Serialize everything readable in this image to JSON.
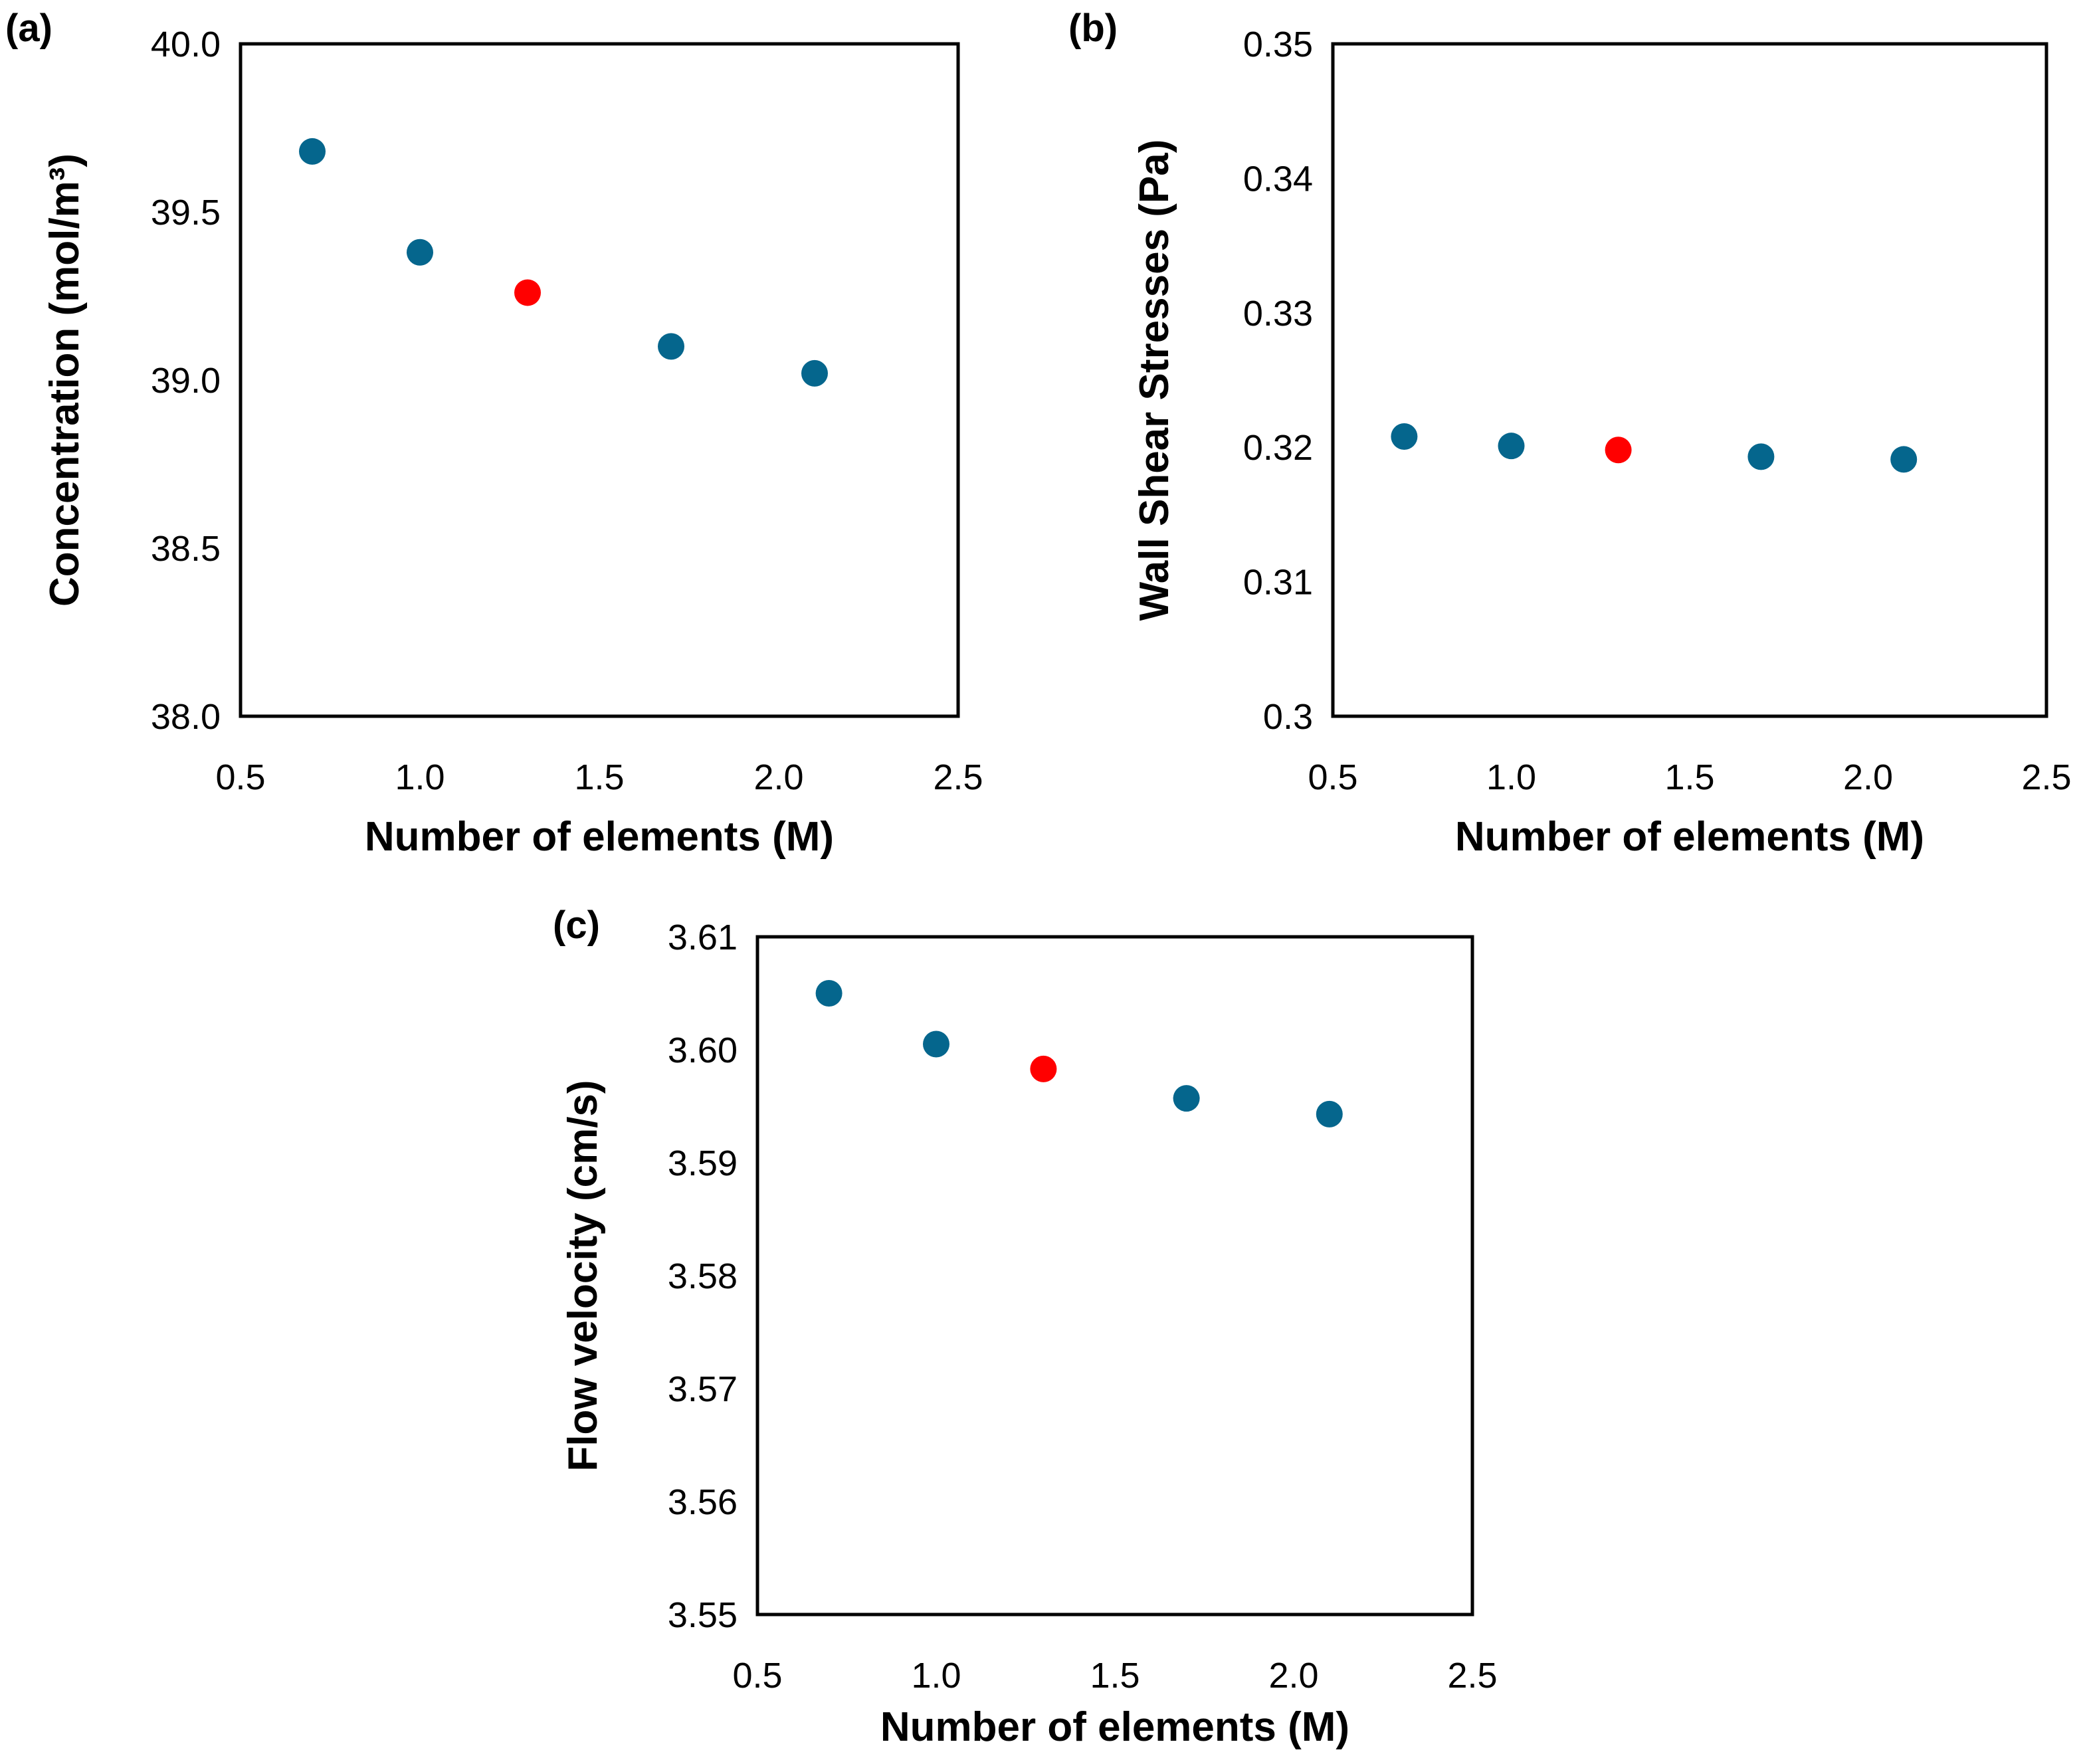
{
  "chart_data": [
    {
      "panel_label": "(a)",
      "type": "scatter",
      "xlabel": "Number of elements (M)",
      "ylabel": "Concentration (mol/m³)",
      "xlim": [
        0.5,
        2.5
      ],
      "ylim": [
        38.0,
        40.0
      ],
      "xticks": [
        "0.5",
        "1.0",
        "1.5",
        "2.0",
        "2.5"
      ],
      "yticks": [
        "40.0",
        "39.5",
        "39.0",
        "38.5",
        "38.0"
      ],
      "grid": false,
      "x": [
        0.7,
        1.0,
        1.3,
        1.7,
        2.1
      ],
      "y": [
        39.68,
        39.38,
        39.26,
        39.1,
        39.02
      ],
      "colors": [
        "#05668D",
        "#05668D",
        "#FF0000",
        "#05668D",
        "#05668D"
      ]
    },
    {
      "panel_label": "(b)",
      "type": "scatter",
      "xlabel": "Number of elements (M)",
      "ylabel": "Wall Shear Stresses (Pa)",
      "xlim": [
        0.5,
        2.5
      ],
      "ylim": [
        0.3,
        0.35
      ],
      "xticks": [
        "0.5",
        "1.0",
        "1.5",
        "2.0",
        "2.5"
      ],
      "yticks": [
        "0.35",
        "0.34",
        "0.33",
        "0.32",
        "0.31",
        "0.3"
      ],
      "grid": false,
      "x": [
        0.7,
        1.0,
        1.3,
        1.7,
        2.1
      ],
      "y": [
        0.3208,
        0.3201,
        0.3198,
        0.3193,
        0.3191
      ],
      "colors": [
        "#05668D",
        "#05668D",
        "#FF0000",
        "#05668D",
        "#05668D"
      ]
    },
    {
      "panel_label": "(c)",
      "type": "scatter",
      "xlabel": "Number of elements (M)",
      "ylabel": "Flow velocity (cm/s)",
      "xlim": [
        0.5,
        2.5
      ],
      "ylim": [
        3.55,
        3.61
      ],
      "xticks": [
        "0.5",
        "1.0",
        "1.5",
        "2.0",
        "2.5"
      ],
      "yticks": [
        "3.61",
        "3.60",
        "3.59",
        "3.58",
        "3.57",
        "3.56",
        "3.55"
      ],
      "grid": false,
      "x": [
        0.7,
        1.0,
        1.3,
        1.7,
        2.1
      ],
      "y": [
        3.605,
        3.6005,
        3.5983,
        3.5957,
        3.5943
      ],
      "colors": [
        "#05668D",
        "#05668D",
        "#FF0000",
        "#05668D",
        "#05668D"
      ]
    }
  ]
}
